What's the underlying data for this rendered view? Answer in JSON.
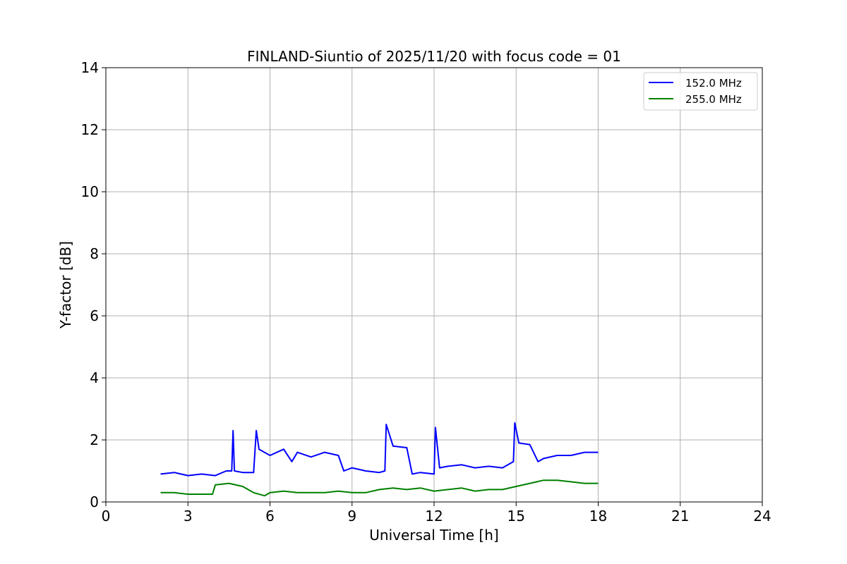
{
  "chart_data": {
    "type": "line",
    "title": "FINLAND-Siuntio of 2025/11/20 with focus code = 01",
    "xlabel": "Universal Time [h]",
    "ylabel": "Y-factor [dB]",
    "xlim": [
      0,
      24
    ],
    "ylim": [
      0,
      14
    ],
    "xticks": [
      0,
      3,
      6,
      9,
      12,
      15,
      18,
      21,
      24
    ],
    "yticks": [
      0,
      2,
      4,
      6,
      8,
      10,
      12,
      14
    ],
    "grid": true,
    "legend_position": "top-right",
    "series": [
      {
        "name": "152.0 MHz",
        "color": "#0000ff",
        "points": [
          [
            2.0,
            0.9
          ],
          [
            2.5,
            0.95
          ],
          [
            3.0,
            0.85
          ],
          [
            3.5,
            0.9
          ],
          [
            4.0,
            0.85
          ],
          [
            4.4,
            1.0
          ],
          [
            4.6,
            1.0
          ],
          [
            4.65,
            2.3
          ],
          [
            4.7,
            1.0
          ],
          [
            5.0,
            0.95
          ],
          [
            5.4,
            0.95
          ],
          [
            5.5,
            2.3
          ],
          [
            5.6,
            1.7
          ],
          [
            6.0,
            1.5
          ],
          [
            6.5,
            1.7
          ],
          [
            6.8,
            1.3
          ],
          [
            7.0,
            1.6
          ],
          [
            7.5,
            1.45
          ],
          [
            8.0,
            1.6
          ],
          [
            8.5,
            1.5
          ],
          [
            8.7,
            1.0
          ],
          [
            9.0,
            1.1
          ],
          [
            9.5,
            1.0
          ],
          [
            10.0,
            0.95
          ],
          [
            10.2,
            1.0
          ],
          [
            10.25,
            2.5
          ],
          [
            10.5,
            1.8
          ],
          [
            11.0,
            1.75
          ],
          [
            11.2,
            0.9
          ],
          [
            11.5,
            0.95
          ],
          [
            12.0,
            0.9
          ],
          [
            12.05,
            2.4
          ],
          [
            12.2,
            1.1
          ],
          [
            12.5,
            1.15
          ],
          [
            13.0,
            1.2
          ],
          [
            13.5,
            1.1
          ],
          [
            14.0,
            1.15
          ],
          [
            14.5,
            1.1
          ],
          [
            14.9,
            1.3
          ],
          [
            14.95,
            2.55
          ],
          [
            15.1,
            1.9
          ],
          [
            15.5,
            1.85
          ],
          [
            15.8,
            1.3
          ],
          [
            16.0,
            1.4
          ],
          [
            16.5,
            1.5
          ],
          [
            17.0,
            1.5
          ],
          [
            17.5,
            1.6
          ],
          [
            18.0,
            1.6
          ]
        ]
      },
      {
        "name": "255.0 MHz",
        "color": "#008000",
        "points": [
          [
            2.0,
            0.3
          ],
          [
            2.5,
            0.3
          ],
          [
            3.0,
            0.25
          ],
          [
            3.5,
            0.25
          ],
          [
            3.9,
            0.25
          ],
          [
            4.0,
            0.55
          ],
          [
            4.5,
            0.6
          ],
          [
            5.0,
            0.5
          ],
          [
            5.4,
            0.3
          ],
          [
            5.8,
            0.2
          ],
          [
            6.0,
            0.3
          ],
          [
            6.5,
            0.35
          ],
          [
            7.0,
            0.3
          ],
          [
            7.5,
            0.3
          ],
          [
            8.0,
            0.3
          ],
          [
            8.5,
            0.35
          ],
          [
            9.0,
            0.3
          ],
          [
            9.5,
            0.3
          ],
          [
            10.0,
            0.4
          ],
          [
            10.5,
            0.45
          ],
          [
            11.0,
            0.4
          ],
          [
            11.5,
            0.45
          ],
          [
            12.0,
            0.35
          ],
          [
            12.5,
            0.4
          ],
          [
            13.0,
            0.45
          ],
          [
            13.5,
            0.35
          ],
          [
            14.0,
            0.4
          ],
          [
            14.5,
            0.4
          ],
          [
            15.0,
            0.5
          ],
          [
            15.5,
            0.6
          ],
          [
            16.0,
            0.7
          ],
          [
            16.3,
            0.7
          ],
          [
            16.5,
            0.7
          ],
          [
            17.0,
            0.65
          ],
          [
            17.5,
            0.6
          ],
          [
            18.0,
            0.6
          ]
        ]
      }
    ]
  }
}
